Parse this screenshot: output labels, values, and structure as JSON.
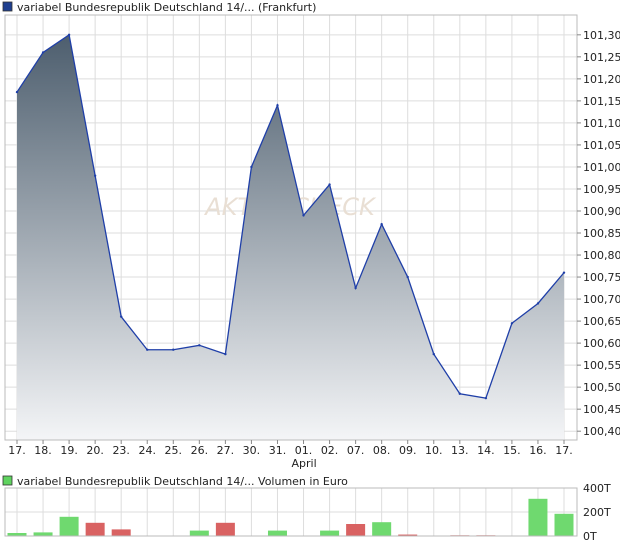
{
  "chart_data": [
    {
      "type": "area",
      "legend": {
        "label": "variabel Bundesrepublik Deutschland 14/... (Frankfurt)",
        "swatch_color": "#1f3f8f"
      },
      "watermark": "AKTIENCHECK",
      "categories": [
        "17.",
        "18.",
        "19.",
        "20.",
        "23.",
        "24.",
        "25.",
        "26.",
        "27.",
        "30.",
        "31.",
        "01.",
        "02.",
        "07.",
        "08.",
        "09.",
        "10.",
        "13.",
        "14.",
        "15.",
        "16.",
        "17."
      ],
      "month_label": {
        "text": "April",
        "at_category_index": 11
      },
      "values": [
        101.17,
        101.26,
        101.3,
        100.98,
        100.66,
        100.585,
        100.585,
        100.595,
        100.575,
        101.0,
        101.14,
        100.89,
        100.96,
        100.725,
        100.87,
        100.75,
        100.575,
        100.485,
        100.475,
        100.645,
        100.69,
        100.76
      ],
      "ylim": [
        100.38,
        101.345
      ],
      "y_ticks": [
        "100,40",
        "100,45",
        "100,50",
        "100,55",
        "100,60",
        "100,65",
        "100,70",
        "100,75",
        "100,80",
        "100,85",
        "100,90",
        "100,95",
        "101,00",
        "101,05",
        "101,10",
        "101,15",
        "101,20",
        "101,25",
        "101,30"
      ],
      "y_tick_values": [
        100.4,
        100.45,
        100.5,
        100.55,
        100.6,
        100.65,
        100.7,
        100.75,
        100.8,
        100.85,
        100.9,
        100.95,
        101.0,
        101.05,
        101.1,
        101.15,
        101.2,
        101.25,
        101.3
      ],
      "grid": true,
      "colors": {
        "line": "#1f3fa8",
        "fill_top": "#4d5e6e",
        "fill_bottom": "#f4f5f7",
        "grid": "#dddddd"
      }
    },
    {
      "type": "bar",
      "legend": {
        "label": "variabel Bundesrepublik Deutschland 14/... Volumen in Euro",
        "swatch_color": "#5fd35f"
      },
      "categories": [
        "17.",
        "18.",
        "19.",
        "20.",
        "23.",
        "24.",
        "25.",
        "26.",
        "27.",
        "30.",
        "31.",
        "01.",
        "02.",
        "07.",
        "08.",
        "09.",
        "10.",
        "13.",
        "14.",
        "15.",
        "16.",
        "17."
      ],
      "values": [
        25,
        30,
        160,
        110,
        55,
        0,
        0,
        45,
        110,
        0,
        45,
        0,
        45,
        100,
        115,
        12,
        0,
        6,
        6,
        0,
        310,
        185
      ],
      "bar_colors": [
        "green",
        "green",
        "green",
        "red",
        "red",
        "none",
        "none",
        "green",
        "red",
        "none",
        "green",
        "none",
        "green",
        "red",
        "green",
        "red",
        "none",
        "red",
        "red",
        "none",
        "green",
        "green"
      ],
      "ylim": [
        0,
        400
      ],
      "y_ticks": [
        "400T",
        "200T",
        "0T"
      ],
      "y_tick_values": [
        400,
        200,
        0
      ],
      "colors": {
        "green": "#6fd96f",
        "red": "#d96262"
      }
    }
  ]
}
